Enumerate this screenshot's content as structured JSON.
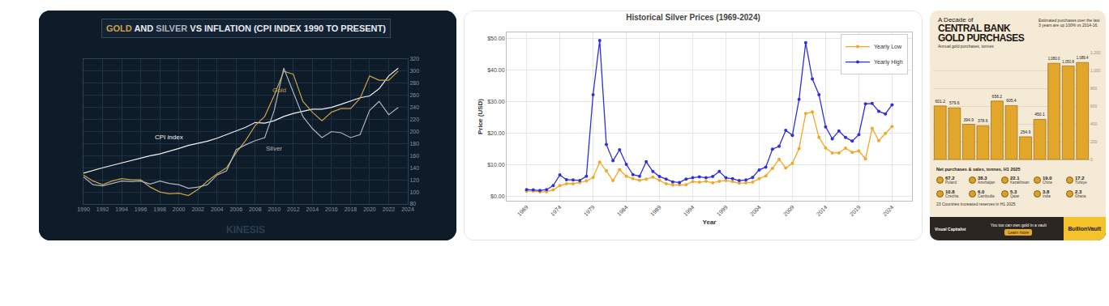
{
  "chart_data": [
    {
      "type": "line",
      "title": "GOLD AND SILVER VS INFLATION (CPI INDEX 1990 TO PRESENT)",
      "x": [
        1990,
        1991,
        1992,
        1993,
        1994,
        1995,
        1996,
        1997,
        1998,
        1999,
        2000,
        2001,
        2002,
        2003,
        2004,
        2005,
        2006,
        2007,
        2008,
        2009,
        2010,
        2011,
        2012,
        2013,
        2014,
        2015,
        2016,
        2017,
        2018,
        2019,
        2020,
        2021,
        2022,
        2023
      ],
      "series": [
        {
          "name": "CPI index",
          "color": "#f2f2f2",
          "values": [
            131,
            136,
            140,
            144,
            148,
            152,
            157,
            160,
            163,
            167,
            172,
            177,
            180,
            184,
            189,
            195,
            202,
            207,
            215,
            214,
            218,
            225,
            230,
            233,
            237,
            237,
            240,
            245,
            251,
            256,
            259,
            271,
            292,
            305
          ]
        },
        {
          "name": "Gold",
          "color": "#c9a24a",
          "values": [
            128,
            118,
            112,
            118,
            122,
            120,
            120,
            108,
            100,
            97,
            98,
            94,
            104,
            118,
            130,
            140,
            165,
            185,
            210,
            225,
            260,
            300,
            295,
            250,
            232,
            218,
            232,
            238,
            238,
            255,
            292,
            285,
            285,
            300
          ]
        },
        {
          "name": "Silver",
          "color": "#aeb4bd",
          "values": [
            125,
            112,
            110,
            114,
            118,
            117,
            118,
            113,
            118,
            114,
            112,
            106,
            108,
            112,
            128,
            135,
            170,
            178,
            185,
            190,
            235,
            305,
            265,
            225,
            205,
            190,
            200,
            198,
            190,
            195,
            235,
            250,
            228,
            240
          ]
        }
      ],
      "annotations": [
        {
          "text": "CPI index",
          "x": 1999,
          "y": 190
        },
        {
          "text": "Gold",
          "x": 2010.5,
          "y": 268
        },
        {
          "text": "Silver",
          "x": 2010,
          "y": 172
        }
      ],
      "source": "KINESIS",
      "xlim": [
        1990,
        2024
      ],
      "xticks": [
        1990,
        1992,
        1994,
        1996,
        1998,
        2000,
        2002,
        2004,
        2006,
        2008,
        2010,
        2012,
        2014,
        2016,
        2018,
        2020,
        2022,
        2024
      ],
      "ylim": [
        80,
        320
      ],
      "yticks": [
        80,
        100,
        120,
        140,
        160,
        180,
        200,
        220,
        240,
        260,
        280,
        300,
        320
      ],
      "grid": true
    },
    {
      "type": "line",
      "title": "Historical Silver Prices (1969-2024)",
      "xlabel": "Year",
      "ylabel": "Price (USD)",
      "x": [
        1969,
        1970,
        1971,
        1972,
        1973,
        1974,
        1975,
        1976,
        1977,
        1978,
        1979,
        1980,
        1981,
        1982,
        1983,
        1984,
        1985,
        1986,
        1987,
        1988,
        1989,
        1990,
        1991,
        1992,
        1993,
        1994,
        1995,
        1996,
        1997,
        1998,
        1999,
        2000,
        2001,
        2002,
        2003,
        2004,
        2005,
        2006,
        2007,
        2008,
        2009,
        2010,
        2011,
        2012,
        2013,
        2014,
        2015,
        2016,
        2017,
        2018,
        2019,
        2020,
        2021,
        2022,
        2023,
        2024
      ],
      "series": [
        {
          "name": "Yearly Low",
          "color": "#f5a623",
          "values": [
            1.55,
            1.6,
            1.3,
            1.4,
            1.95,
            3.3,
            3.9,
            3.9,
            4.3,
            4.8,
            5.9,
            10.8,
            8.0,
            4.9,
            8.4,
            6.3,
            5.5,
            5.0,
            5.4,
            6.0,
            5.0,
            3.9,
            3.5,
            3.6,
            3.6,
            4.6,
            4.4,
            4.7,
            4.2,
            4.7,
            4.9,
            4.6,
            4.1,
            4.2,
            4.4,
            5.5,
            6.4,
            8.8,
            11.7,
            8.9,
            10.4,
            15.1,
            26.2,
            26.7,
            18.6,
            15.3,
            13.7,
            13.7,
            15.2,
            13.9,
            14.3,
            11.8,
            21.5,
            17.6,
            19.9,
            22.1
          ]
        },
        {
          "name": "Yearly High",
          "color": "#2f2fe0",
          "values": [
            2.05,
            1.95,
            1.75,
            2.05,
            3.3,
            6.7,
            5.2,
            5.1,
            4.95,
            6.3,
            32.2,
            49.45,
            16.4,
            11.2,
            14.7,
            10.1,
            6.8,
            6.3,
            10.9,
            7.8,
            6.2,
            5.4,
            4.5,
            4.3,
            5.4,
            5.8,
            6.1,
            5.8,
            6.2,
            7.8,
            5.8,
            5.5,
            4.9,
            5.1,
            5.9,
            8.3,
            9.2,
            14.9,
            15.8,
            20.9,
            19.3,
            30.7,
            48.7,
            37.2,
            32.2,
            22.0,
            18.2,
            20.7,
            18.6,
            17.5,
            19.5,
            29.3,
            29.4,
            26.9,
            26.1,
            29.0
          ]
        }
      ],
      "marker": "circle",
      "legend": "upper right",
      "xlim": [
        1966,
        2027
      ],
      "xticks": [
        1969,
        1974,
        1979,
        1984,
        1989,
        1994,
        1999,
        2004,
        2009,
        2014,
        2019,
        2024
      ],
      "ylim": [
        -1.5,
        52
      ],
      "yticks": [
        {
          "value": 0,
          "label": "$0.00"
        },
        {
          "value": 10,
          "label": "$10.00"
        },
        {
          "value": 20,
          "label": "$20.00"
        },
        {
          "value": 30,
          "label": "$30.00"
        },
        {
          "value": 40,
          "label": "$40.00"
        },
        {
          "value": 50,
          "label": "$50.00"
        }
      ],
      "grid": true
    },
    {
      "type": "bar",
      "subtitle": "A Decade of",
      "title": "CENTRAL BANK GOLD PURCHASES",
      "note": "Estimated purchases over the last 3 years are up 100% vs 2014-16.",
      "ylabel": "Annual gold purchases, tonnes",
      "categories": [
        null,
        null,
        null,
        null,
        null,
        null,
        null,
        null,
        null,
        null,
        null
      ],
      "values": [
        601.2,
        579.6,
        394.9,
        378.6,
        656.2,
        605.4,
        254.9,
        450.1,
        1080.0,
        1050.8,
        1089.4
      ],
      "value_labels": [
        "601.2",
        "579.6",
        "394.9",
        "378.6",
        "656.2",
        "605.4",
        "254.9",
        "450.1",
        "1,080.0",
        "1,050.8",
        "1,089.4"
      ],
      "data_labels": true,
      "color": "#e2a62a",
      "ylim": [
        0,
        1200
      ],
      "yticks": [
        0,
        200,
        400,
        600,
        800,
        {
          "value": 1000,
          "label": "1,000"
        },
        {
          "value": 1200,
          "label": "1,200"
        }
      ],
      "tick_labels": "y",
      "grid": true
    }
  ],
  "net_purchases": {
    "title": "Net purchases & sales, tonnes, H1 2025",
    "rows": [
      {
        "country": "Poland",
        "value": "67.2"
      },
      {
        "country": "Azerbaijan",
        "value": "38.3"
      },
      {
        "country": "Kazakhstan",
        "value": "22.1"
      },
      {
        "country": "China",
        "value": "19.0"
      },
      {
        "country": "Türkiye",
        "value": "17.2"
      },
      {
        "country": "Czechia",
        "value": "10.8"
      },
      {
        "country": "Cambodia",
        "value": "6.0"
      },
      {
        "country": "Qatar",
        "value": "5.3"
      },
      {
        "country": "India",
        "value": "3.8"
      },
      {
        "country": "Ghana",
        "value": "2.3"
      }
    ],
    "note": "23 Countries increased reserves in H1 2025"
  },
  "footer": {
    "partner": "Visual Capitalist",
    "text": "You too can own gold in a vault",
    "button": "Learn more",
    "sponsor": "BullionVault"
  }
}
